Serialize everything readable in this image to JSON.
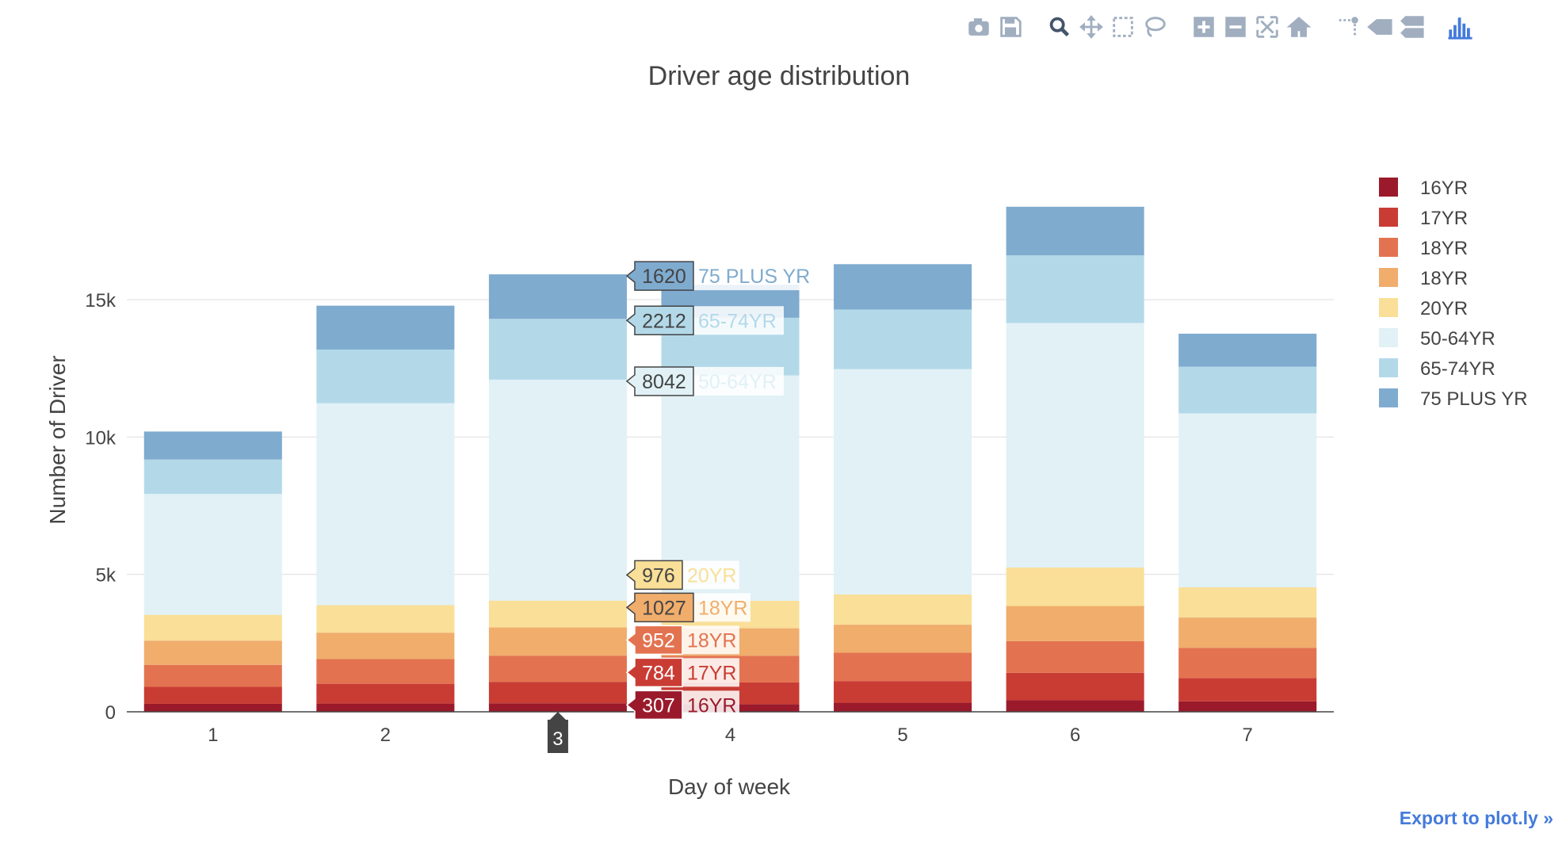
{
  "toolbar": {
    "buttons": [
      {
        "group": 0,
        "icon": "camera-icon",
        "label": "Download plot as a png"
      },
      {
        "group": 0,
        "icon": "save-icon",
        "label": "Save and edit plot in cloud"
      },
      {
        "group": 1,
        "icon": "zoom-icon",
        "label": "Zoom",
        "active": true
      },
      {
        "group": 1,
        "icon": "pan-icon",
        "label": "Pan"
      },
      {
        "group": 1,
        "icon": "box-select-icon",
        "label": "Box Select"
      },
      {
        "group": 1,
        "icon": "lasso-select-icon",
        "label": "Lasso Select"
      },
      {
        "group": 2,
        "icon": "zoom-in-icon",
        "label": "Zoom in"
      },
      {
        "group": 2,
        "icon": "zoom-out-icon",
        "label": "Zoom out"
      },
      {
        "group": 2,
        "icon": "autoscale-icon",
        "label": "Autoscale"
      },
      {
        "group": 2,
        "icon": "home-icon",
        "label": "Reset axes"
      },
      {
        "group": 3,
        "icon": "spikelines-icon",
        "label": "Toggle Spike Lines"
      },
      {
        "group": 3,
        "icon": "hover-closest-icon",
        "label": "Show closest data on hover"
      },
      {
        "group": 3,
        "icon": "hover-compare-icon",
        "label": "Compare data on hover"
      },
      {
        "group": 4,
        "icon": "plotly-logo-icon",
        "label": "Produced with Plotly"
      }
    ],
    "icon_color": "#a0aec0",
    "active_color": "#44546a",
    "logo_color": "#447adb"
  },
  "export_link": "Export to plot.ly »",
  "chart_data": {
    "type": "bar",
    "barmode": "stack",
    "title": "Driver age distribution",
    "xlabel": "Day of week",
    "ylabel": "Number of Driver",
    "categories": [
      "1",
      "2",
      "3",
      "4",
      "5",
      "6",
      "7"
    ],
    "ylim": [
      0,
      19500
    ],
    "yticks": [
      0,
      5000,
      10000,
      15000
    ],
    "ytick_labels": [
      "0",
      "5k",
      "10k",
      "15k"
    ],
    "grid": true,
    "legend_position": "right",
    "series": [
      {
        "name": "16YR",
        "color": "#9a1a2b",
        "values": [
          290,
          300,
          307,
          280,
          330,
          420,
          380
        ]
      },
      {
        "name": "17YR",
        "color": "#c93c34",
        "values": [
          620,
          720,
          784,
          790,
          790,
          1000,
          850
        ]
      },
      {
        "name": "18YR",
        "color": "#e37350",
        "values": [
          800,
          900,
          952,
          970,
          1030,
          1150,
          1100
        ]
      },
      {
        "name": "18YR",
        "color": "#f0ad6c",
        "values": [
          880,
          960,
          1027,
          1000,
          1020,
          1280,
          1100
        ]
      },
      {
        "name": "20YR",
        "color": "#f9df98",
        "values": [
          940,
          1000,
          976,
          1000,
          1100,
          1400,
          1100
        ]
      },
      {
        "name": "50-64YR",
        "color": "#e1f1f6",
        "values": [
          4400,
          7350,
          8042,
          8200,
          8200,
          8900,
          6330
        ]
      },
      {
        "name": "65-74YR",
        "color": "#b3d9e9",
        "values": [
          1250,
          1950,
          2212,
          2100,
          2170,
          2460,
          1700
        ]
      },
      {
        "name": "75 PLUS YR",
        "color": "#7fabcf",
        "values": [
          1020,
          1600,
          1620,
          1200,
          1650,
          1770,
          1200
        ]
      }
    ],
    "hover": {
      "category_index": 2,
      "x_label": "3",
      "x_label_bg": "#444444",
      "labels": [
        {
          "series_index": 7,
          "value": "1620",
          "text": "75 PLUS YR"
        },
        {
          "series_index": 6,
          "value": "2212",
          "text": "65-74YR"
        },
        {
          "series_index": 5,
          "value": "8042",
          "text": "50-64YR"
        },
        {
          "series_index": 4,
          "value": "976",
          "text": "20YR"
        },
        {
          "series_index": 3,
          "value": "1027",
          "text": "18YR"
        },
        {
          "series_index": 2,
          "value": "952",
          "text": "18YR"
        },
        {
          "series_index": 1,
          "value": "784",
          "text": "17YR"
        },
        {
          "series_index": 0,
          "value": "307",
          "text": "16YR"
        }
      ]
    }
  }
}
